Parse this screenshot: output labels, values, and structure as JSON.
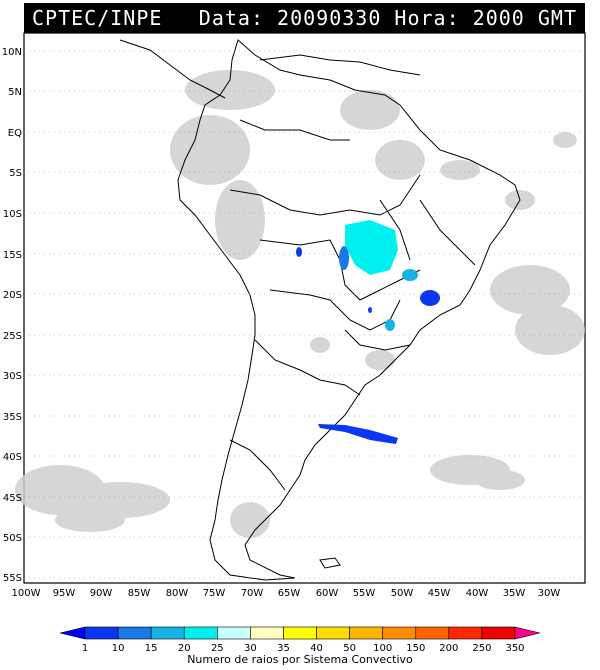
{
  "header": {
    "source": "CPTEC/INPE",
    "datetime": "Data: 20090330 Hora: 2000 GMT"
  },
  "map": {
    "lat_labels": [
      "10N",
      "5N",
      "EQ",
      "5S",
      "10S",
      "15S",
      "20S",
      "25S",
      "30S",
      "35S",
      "40S",
      "45S",
      "50S",
      "55S"
    ],
    "lon_labels": [
      "100W",
      "95W",
      "90W",
      "85W",
      "80W",
      "75W",
      "70W",
      "65W",
      "60W",
      "55W",
      "50W",
      "45W",
      "40W",
      "35W",
      "30W"
    ],
    "lon_range": [
      -100,
      -27
    ],
    "lat_range": [
      -56,
      13
    ],
    "layers": [
      "satellite-cloud-cover",
      "country-borders",
      "convective-system-lightning"
    ]
  },
  "legend": {
    "values": [
      "1",
      "10",
      "15",
      "20",
      "25",
      "30",
      "35",
      "40",
      "50",
      "100",
      "150",
      "200",
      "250",
      "350"
    ],
    "colors": [
      "#0000ff",
      "#0a37f2",
      "#1a78e8",
      "#16b4e6",
      "#00f0f0",
      "#c8ffff",
      "#ffffc0",
      "#ffff00",
      "#ffdc00",
      "#ffb400",
      "#ff8c00",
      "#ff6400",
      "#ff2800",
      "#f00000",
      "#ff0090"
    ],
    "title": "Numero de raios por Sistema Convectivo"
  }
}
